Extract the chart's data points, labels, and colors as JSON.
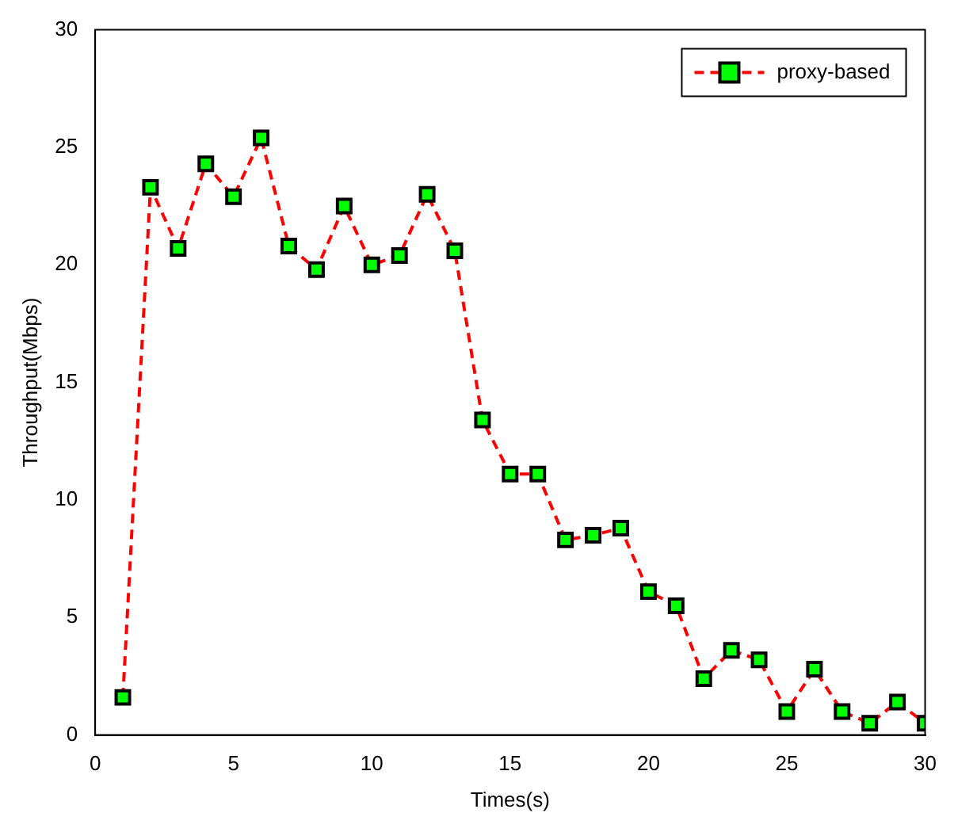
{
  "chart_data": {
    "type": "line",
    "xlabel": "Times(s)",
    "ylabel": "Throughput(Mbps)",
    "x": [
      1,
      2,
      3,
      4,
      5,
      6,
      7,
      8,
      9,
      10,
      11,
      12,
      13,
      14,
      15,
      16,
      17,
      18,
      19,
      20,
      21,
      22,
      23,
      24,
      25,
      26,
      27,
      28,
      29,
      30
    ],
    "series": [
      {
        "name": "proxy-based",
        "color": "#ff0000",
        "colors": [
          "#00ff00",
          "#00ff00",
          "#00ff00",
          "#00ff00",
          "#00ff00",
          "#00ff00",
          "#00ff00",
          "#00ff00",
          "#00ff00",
          "#00ff00",
          "#00ff00",
          "#00ff00",
          "#00ff00",
          "#00ff00",
          "#00ff00",
          "#00ff00",
          "#00ff00",
          "#00ff00",
          "#00ff00",
          "#00ff00",
          "#00ff00",
          "#00ff00",
          "#00ff00",
          "#00ff00",
          "#00ff00",
          "#00ff00",
          "#00ff00",
          "#00ff00",
          "#00ff00",
          "#00ff00"
        ],
        "values": [
          1.6,
          23.3,
          20.7,
          24.3,
          22.9,
          25.4,
          20.8,
          19.8,
          22.5,
          20.0,
          20.4,
          23.0,
          20.6,
          13.4,
          11.1,
          11.1,
          8.3,
          8.5,
          8.8,
          6.1,
          5.5,
          2.4,
          3.6,
          3.2,
          1.0,
          2.8,
          1.0,
          0.5,
          1.4,
          0.5
        ]
      }
    ],
    "xlim": [
      0,
      30
    ],
    "xticks": [
      0,
      5,
      10,
      15,
      20,
      25,
      30
    ],
    "ylim": [
      0,
      30
    ],
    "yticks": [
      0,
      5,
      10,
      15,
      20,
      25,
      30
    ],
    "grid": false,
    "legend": "top right",
    "marker": "square",
    "line_style": "dashed"
  }
}
